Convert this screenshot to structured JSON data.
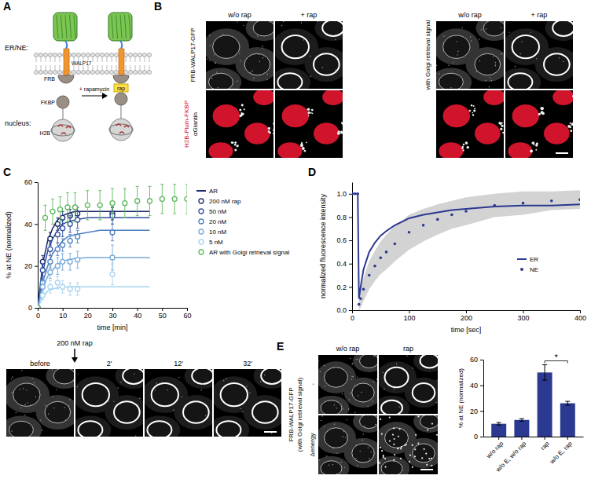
{
  "figure": {
    "panel_labels": [
      "A",
      "B",
      "C",
      "D",
      "E"
    ],
    "schematic": {
      "compartments": [
        "ER/NE:",
        "nucleus:"
      ],
      "walp": "WALP17",
      "frb": "FRB",
      "fkbp": "FKBP",
      "treatment": "+ rapamycin",
      "rap": "rap",
      "h2b": "H2B"
    },
    "micrographs_b": {
      "columns": [
        "w/o rap",
        "+ rap",
        "w/o rap",
        "+ rap"
      ],
      "row_labels": [
        "FRB-WALP17-GFP",
        "H2B-Plum-FKBP",
        "αGiantin"
      ],
      "group": "with Golgi retrieval signal"
    },
    "time_lapse": {
      "treatment": "200 nM rap",
      "frames": [
        "before",
        "2'",
        "12'",
        "32'"
      ]
    },
    "micrographs_e": {
      "label": [
        "FRB-WALP17-GFP",
        "(with Golgi retrieval signal)"
      ],
      "columns": [
        "w/o rap",
        "rap"
      ],
      "rows": [
        "-",
        "Δenergy"
      ]
    }
  },
  "chart_data": [
    {
      "type": "line",
      "x_label": "time [min]",
      "y_label": "% at NE (normalized)",
      "xlim": [
        0,
        60
      ],
      "xticks": [
        0,
        10,
        20,
        30,
        40,
        50,
        60
      ],
      "ylim": [
        0,
        60
      ],
      "yticks": [
        0,
        20,
        40,
        60
      ],
      "legend": "right",
      "fit_name": "AR",
      "fit_x": [
        0,
        2,
        4,
        6,
        8,
        10,
        12,
        15,
        20,
        25,
        30,
        35,
        40,
        45
      ],
      "series": [
        {
          "name": "200 nM rap",
          "type": "scatter",
          "marker": "circle-open",
          "color": "#1b2a6b",
          "x": [
            0,
            2,
            5,
            8,
            10,
            13,
            16,
            30
          ],
          "values": [
            0,
            22,
            33,
            40,
            43,
            44,
            45,
            45
          ],
          "errors": [
            0,
            3,
            3,
            3,
            3,
            3,
            3,
            3
          ],
          "fit": [
            0,
            21,
            32,
            38,
            42,
            44,
            45,
            46,
            46,
            46,
            46,
            46,
            46,
            46
          ]
        },
        {
          "name": "50 nM",
          "type": "scatter",
          "marker": "circle-open",
          "color": "#2f4f9e",
          "x": [
            0,
            2,
            5,
            8,
            10,
            13,
            16,
            30
          ],
          "values": [
            0,
            18,
            28,
            35,
            38,
            40,
            42,
            44
          ],
          "errors": [
            0,
            3,
            3,
            4,
            4,
            4,
            4,
            4
          ],
          "fit": [
            0,
            17,
            27,
            33,
            37,
            40,
            41,
            42,
            43,
            43,
            43,
            43,
            43,
            43
          ]
        },
        {
          "name": "20 nM",
          "type": "scatter",
          "marker": "circle-open",
          "color": "#4f7fbf",
          "x": [
            0,
            2,
            5,
            8,
            10,
            13,
            16,
            30
          ],
          "values": [
            0,
            12,
            22,
            28,
            30,
            32,
            34,
            36
          ],
          "errors": [
            0,
            3,
            3,
            3,
            3,
            3,
            3,
            4
          ],
          "fit": [
            0,
            12,
            20,
            26,
            29,
            32,
            34,
            35,
            36,
            37,
            37,
            37,
            37,
            37
          ]
        },
        {
          "name": "10 nM",
          "type": "scatter",
          "marker": "circle-open",
          "color": "#74a9d8",
          "x": [
            0,
            2,
            5,
            8,
            10,
            13,
            16,
            30
          ],
          "values": [
            0,
            10,
            17,
            20,
            22,
            22,
            23,
            24
          ],
          "errors": [
            0,
            3,
            3,
            4,
            4,
            4,
            4,
            6
          ],
          "fit": [
            0,
            9,
            15,
            18,
            21,
            22,
            23,
            23.5,
            24,
            24,
            24,
            24,
            24,
            24
          ]
        },
        {
          "name": "5 nM",
          "type": "scatter",
          "marker": "circle-open",
          "color": "#a6d3f0",
          "x": [
            0,
            2,
            5,
            8,
            10,
            13,
            16,
            30
          ],
          "values": [
            0,
            6,
            10,
            12,
            10,
            9,
            9,
            16
          ],
          "errors": [
            0,
            2,
            3,
            3,
            3,
            3,
            3,
            5
          ],
          "fit": [
            0,
            5,
            8,
            9,
            9.6,
            9.8,
            10,
            10,
            10,
            10,
            10,
            10,
            10,
            10
          ]
        },
        {
          "name": "AR with Golgi retrieval signal",
          "type": "scatter",
          "marker": "circle-open",
          "color": "#5cb85c",
          "x": [
            0,
            3,
            6,
            9,
            12,
            15,
            20,
            25,
            30,
            35,
            40,
            45,
            50,
            55,
            60
          ],
          "values": [
            0,
            43,
            46,
            47,
            48,
            48,
            49,
            49,
            50,
            50,
            51,
            51,
            52,
            52,
            52
          ],
          "errors": [
            0,
            6,
            6,
            6,
            7,
            7,
            7,
            7,
            7,
            7,
            7,
            7,
            7,
            7,
            7
          ]
        }
      ]
    },
    {
      "type": "line",
      "x_label": "time [sec]",
      "y_label": "normalized fluorescence intensity",
      "xlim": [
        0,
        400
      ],
      "xticks": [
        0,
        100,
        200,
        300,
        400
      ],
      "ylim": [
        0,
        1.1
      ],
      "yticks": [
        {
          "value": 0,
          "label": "0.0"
        },
        0.2,
        0.4,
        0.6,
        0.8,
        {
          "value": 1,
          "label": "1.0"
        }
      ],
      "legend": "lower-right",
      "x": [
        0,
        5,
        10,
        12,
        15,
        20,
        30,
        40,
        50,
        60,
        75,
        100,
        125,
        150,
        175,
        200,
        250,
        300,
        350,
        400
      ],
      "series": [
        {
          "name": "ER",
          "type": "line",
          "line_style": "solid",
          "color": "#2b3990",
          "values": [
            1,
            1,
            1,
            0.1,
            0.2,
            0.35,
            0.5,
            0.58,
            0.64,
            0.68,
            0.73,
            0.79,
            0.82,
            0.84,
            0.86,
            0.87,
            0.89,
            0.9,
            0.9,
            0.91
          ]
        },
        {
          "name": "NE",
          "type": "scatter",
          "marker": "circle",
          "color": "#2b3990",
          "values": [
            1,
            1,
            1,
            0.05,
            0.1,
            0.18,
            0.3,
            0.38,
            0.45,
            0.5,
            0.57,
            0.67,
            0.73,
            0.78,
            0.82,
            0.85,
            0.9,
            0.92,
            0.94,
            0.95
          ],
          "sd": [
            0,
            0,
            0,
            0.05,
            0.08,
            0.1,
            0.12,
            0.13,
            0.14,
            0.15,
            0.15,
            0.15,
            0.14,
            0.13,
            0.12,
            0.12,
            0.1,
            0.1,
            0.08,
            0.08
          ]
        }
      ]
    },
    {
      "type": "bar",
      "y_label": "% at NE (normalized)",
      "categories": [
        "w/o rap",
        "w/o E, w/o rap",
        "rap",
        "w/o E, rap"
      ],
      "values": [
        10,
        13,
        50,
        26
      ],
      "errors": [
        1,
        1,
        6,
        1.5
      ],
      "color": "#2b3990",
      "ylim": [
        0,
        60
      ],
      "yticks": [
        0,
        20,
        40,
        60
      ],
      "annotations": [
        {
          "text": "*",
          "categories": [
            "rap",
            "w/o E, rap"
          ]
        }
      ]
    }
  ]
}
